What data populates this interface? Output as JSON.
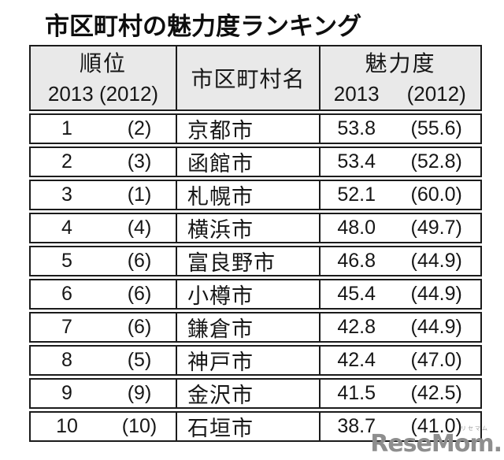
{
  "title": "市区町村の魅力度ランキング",
  "table": {
    "headers": {
      "rank_label": "順位",
      "rank_years": "2013 (2012)",
      "city_label": "市区町村名",
      "score_label": "魅力度",
      "score_year_now": "2013",
      "score_year_prev": "(2012)"
    },
    "rows": [
      {
        "rank": "1",
        "prev_rank": "(2)",
        "city": "京都市",
        "score": "53.8",
        "prev_score": "(55.6)"
      },
      {
        "rank": "2",
        "prev_rank": "(3)",
        "city": "函館市",
        "score": "53.4",
        "prev_score": "(52.8)"
      },
      {
        "rank": "3",
        "prev_rank": "(1)",
        "city": "札幌市",
        "score": "52.1",
        "prev_score": "(60.0)"
      },
      {
        "rank": "4",
        "prev_rank": "(4)",
        "city": "横浜市",
        "score": "48.0",
        "prev_score": "(49.7)"
      },
      {
        "rank": "5",
        "prev_rank": "(6)",
        "city": "富良野市",
        "score": "46.8",
        "prev_score": "(44.9)"
      },
      {
        "rank": "6",
        "prev_rank": "(6)",
        "city": "小樽市",
        "score": "45.4",
        "prev_score": "(44.9)"
      },
      {
        "rank": "7",
        "prev_rank": "(6)",
        "city": "鎌倉市",
        "score": "42.8",
        "prev_score": "(44.9)"
      },
      {
        "rank": "8",
        "prev_rank": "(5)",
        "city": "神戸市",
        "score": "42.4",
        "prev_score": "(47.0)"
      },
      {
        "rank": "9",
        "prev_rank": "(9)",
        "city": "金沢市",
        "score": "41.5",
        "prev_score": "(42.5)"
      },
      {
        "rank": "10",
        "prev_rank": "(10)",
        "city": "石垣市",
        "score": "38.7",
        "prev_score": "(41.0)"
      }
    ]
  },
  "watermark": {
    "logo_text": "ReseMom.",
    "logo_ruby": "リセマム"
  },
  "colors": {
    "header_bg": "#e9e9e9",
    "border": "#1b1b1b",
    "text": "#161616",
    "logo_gray": "#8e8e8e",
    "background": "#ffffff"
  },
  "chart_data": {
    "type": "table",
    "title": "市区町村の魅力度ランキング",
    "columns": [
      "順位 2013",
      "順位 2012",
      "市区町村名",
      "魅力度 2013",
      "魅力度 2012"
    ],
    "rows": [
      [
        1,
        2,
        "京都市",
        53.8,
        55.6
      ],
      [
        2,
        3,
        "函館市",
        53.4,
        52.8
      ],
      [
        3,
        1,
        "札幌市",
        52.1,
        60.0
      ],
      [
        4,
        4,
        "横浜市",
        48.0,
        49.7
      ],
      [
        5,
        6,
        "富良野市",
        46.8,
        44.9
      ],
      [
        6,
        6,
        "小樽市",
        45.4,
        44.9
      ],
      [
        7,
        6,
        "鎌倉市",
        42.8,
        44.9
      ],
      [
        8,
        5,
        "神戸市",
        42.4,
        47.0
      ],
      [
        9,
        9,
        "金沢市",
        41.5,
        42.5
      ],
      [
        10,
        10,
        "石垣市",
        38.7,
        41.0
      ]
    ]
  }
}
